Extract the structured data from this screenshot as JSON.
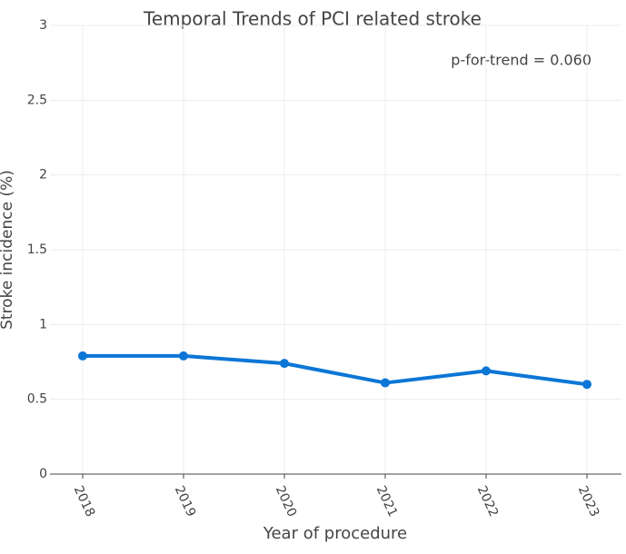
{
  "chart_data": {
    "type": "line",
    "title": "Temporal Trends of PCI related stroke",
    "annotation": "p-for-trend = 0.060",
    "x_label": "Year of procedure",
    "y_label": "Stroke incidence (%)",
    "x": [
      2018,
      2019,
      2020,
      2021,
      2022,
      2023
    ],
    "series": [
      {
        "name": "Stroke incidence",
        "color": "#0b76d6",
        "values": [
          0.79,
          0.79,
          0.74,
          0.61,
          0.69,
          0.6
        ]
      }
    ],
    "xlim": [
      2017.676,
      2023.342
    ],
    "xticks": [
      2018,
      2019,
      2020,
      2021,
      2022,
      2023
    ],
    "ylim": [
      0,
      3
    ],
    "yticks": [
      0,
      0.5,
      1,
      1.5,
      2,
      2.5,
      3
    ],
    "grid": true
  }
}
